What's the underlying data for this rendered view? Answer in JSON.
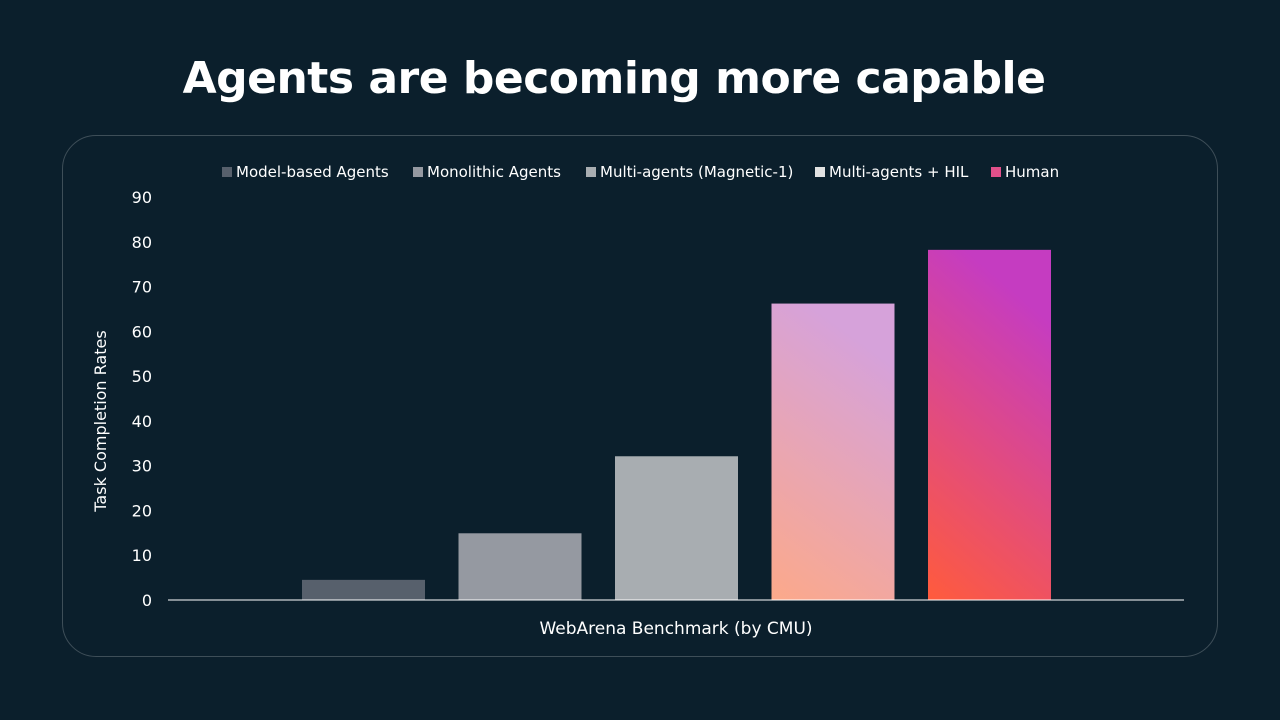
{
  "slide": {
    "title": "Agents are becoming more capable"
  },
  "colors": {
    "background": "#0b1f2c",
    "text": "#ffffff",
    "axis": "#ffffff",
    "panel_border": "#3e4e58"
  },
  "chart_data": {
    "type": "bar",
    "title": "",
    "xlabel": "WebArena Benchmark (by CMU)",
    "ylabel": "Task Completion Rates",
    "ylim": [
      0,
      90
    ],
    "yticks": [
      0,
      10,
      20,
      30,
      40,
      50,
      60,
      70,
      80,
      90
    ],
    "grid": false,
    "legend_position": "top",
    "series": [
      {
        "name": "Model-based Agents",
        "value": 4.5,
        "color": "#57606c",
        "gradient": false
      },
      {
        "name": "Monolithic Agents",
        "value": 14.9,
        "color": "#9599a1",
        "gradient": false
      },
      {
        "name": "Multi-agents (Magnetic-1)",
        "value": 32.1,
        "color": "#a8adb1",
        "gradient": false
      },
      {
        "name": "Multi-agents + HIL",
        "value": 66.2,
        "color": "#e2e2e2",
        "gradient": true,
        "gradient_top": "#d6a2da",
        "gradient_bottom": "#fca98a"
      },
      {
        "name": "Human",
        "value": 78.2,
        "color": "#e0508a",
        "gradient": true,
        "gradient_top": "#c53cc1",
        "gradient_bottom": "#ff5b3c"
      }
    ]
  }
}
